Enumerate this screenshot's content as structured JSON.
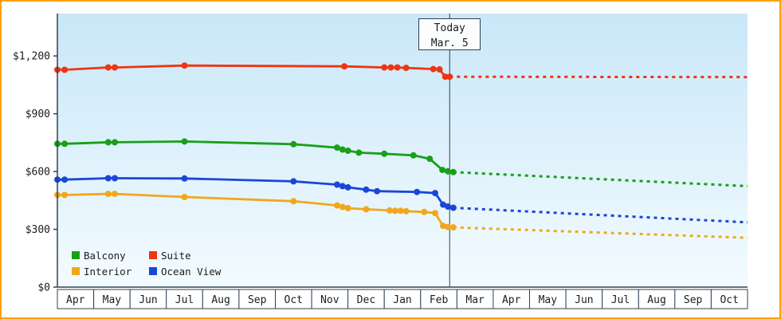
{
  "colors": {
    "frame_border": "#ffa200",
    "axis": "#2e4156",
    "plot_bg_top": "#c9e7f8",
    "plot_bg_bottom": "#f3fbff",
    "text": "#1c1c1c"
  },
  "chart_data": {
    "type": "line",
    "title": "",
    "ymax": 1420,
    "ylim": [
      0,
      1420
    ],
    "grid": false,
    "legend_position": "bottom-left-inside",
    "today_x": 10.8,
    "today_label": {
      "line1": "Today",
      "line2": "Mar. 5"
    },
    "x_months": [
      "Apr",
      "May",
      "Jun",
      "Jul",
      "Aug",
      "Sep",
      "Oct",
      "Nov",
      "Dec",
      "Jan",
      "Feb",
      "Mar",
      "Apr",
      "May",
      "Jun",
      "Jul",
      "Aug",
      "Sep",
      "Oct"
    ],
    "y_ticks": [
      {
        "label": "$0",
        "value": 0
      },
      {
        "label": "$300",
        "value": 300
      },
      {
        "label": "$600",
        "value": 600
      },
      {
        "label": "$900",
        "value": 900
      },
      {
        "label": "$1,200",
        "value": 1200
      }
    ],
    "legend_rows": [
      [
        "Balcony",
        "Suite"
      ],
      [
        "Interior",
        "Ocean View"
      ]
    ],
    "series": [
      {
        "name": "Suite",
        "color": "#ee3512",
        "solid": [
          [
            0,
            1128
          ],
          [
            0.2,
            1128
          ],
          [
            1.4,
            1140
          ],
          [
            1.58,
            1140
          ],
          [
            3.5,
            1150
          ],
          [
            7.9,
            1146
          ],
          [
            9.0,
            1140
          ],
          [
            9.18,
            1140
          ],
          [
            9.36,
            1140
          ],
          [
            9.6,
            1138
          ],
          [
            10.35,
            1132
          ],
          [
            10.52,
            1130
          ],
          [
            10.68,
            1092
          ],
          [
            10.8,
            1092
          ]
        ],
        "projected": [
          [
            10.8,
            1092
          ],
          [
            19,
            1090
          ]
        ]
      },
      {
        "name": "Balcony",
        "color": "#18a018",
        "solid": [
          [
            0,
            744
          ],
          [
            0.2,
            744
          ],
          [
            1.4,
            752
          ],
          [
            1.58,
            752
          ],
          [
            3.5,
            756
          ],
          [
            6.5,
            742
          ],
          [
            7.7,
            724
          ],
          [
            7.85,
            714
          ],
          [
            8.0,
            708
          ],
          [
            8.3,
            698
          ],
          [
            9.0,
            692
          ],
          [
            9.8,
            684
          ],
          [
            10.25,
            666
          ],
          [
            10.6,
            608
          ],
          [
            10.75,
            601
          ],
          [
            10.9,
            597
          ]
        ],
        "projected": [
          [
            10.9,
            597
          ],
          [
            19,
            524
          ]
        ]
      },
      {
        "name": "Ocean View",
        "color": "#1a46d8",
        "solid": [
          [
            0,
            558
          ],
          [
            0.2,
            558
          ],
          [
            1.4,
            565
          ],
          [
            1.58,
            565
          ],
          [
            3.5,
            564
          ],
          [
            6.5,
            549
          ],
          [
            7.7,
            532
          ],
          [
            7.85,
            524
          ],
          [
            8.0,
            518
          ],
          [
            8.5,
            506
          ],
          [
            8.8,
            498
          ],
          [
            9.9,
            494
          ],
          [
            10.4,
            488
          ],
          [
            10.62,
            428
          ],
          [
            10.75,
            418
          ],
          [
            10.9,
            412
          ]
        ],
        "projected": [
          [
            10.9,
            412
          ],
          [
            19,
            336
          ]
        ]
      },
      {
        "name": "Interior",
        "color": "#f2a71b",
        "solid": [
          [
            0,
            478
          ],
          [
            0.2,
            478
          ],
          [
            1.4,
            484
          ],
          [
            1.58,
            484
          ],
          [
            3.5,
            468
          ],
          [
            6.5,
            446
          ],
          [
            7.7,
            424
          ],
          [
            7.85,
            416
          ],
          [
            8.0,
            410
          ],
          [
            8.5,
            404
          ],
          [
            9.15,
            398
          ],
          [
            9.3,
            396
          ],
          [
            9.45,
            396
          ],
          [
            9.6,
            394
          ],
          [
            10.1,
            390
          ],
          [
            10.4,
            384
          ],
          [
            10.62,
            318
          ],
          [
            10.75,
            312
          ],
          [
            10.9,
            310
          ]
        ],
        "projected": [
          [
            10.9,
            310
          ],
          [
            19,
            256
          ]
        ]
      }
    ]
  }
}
